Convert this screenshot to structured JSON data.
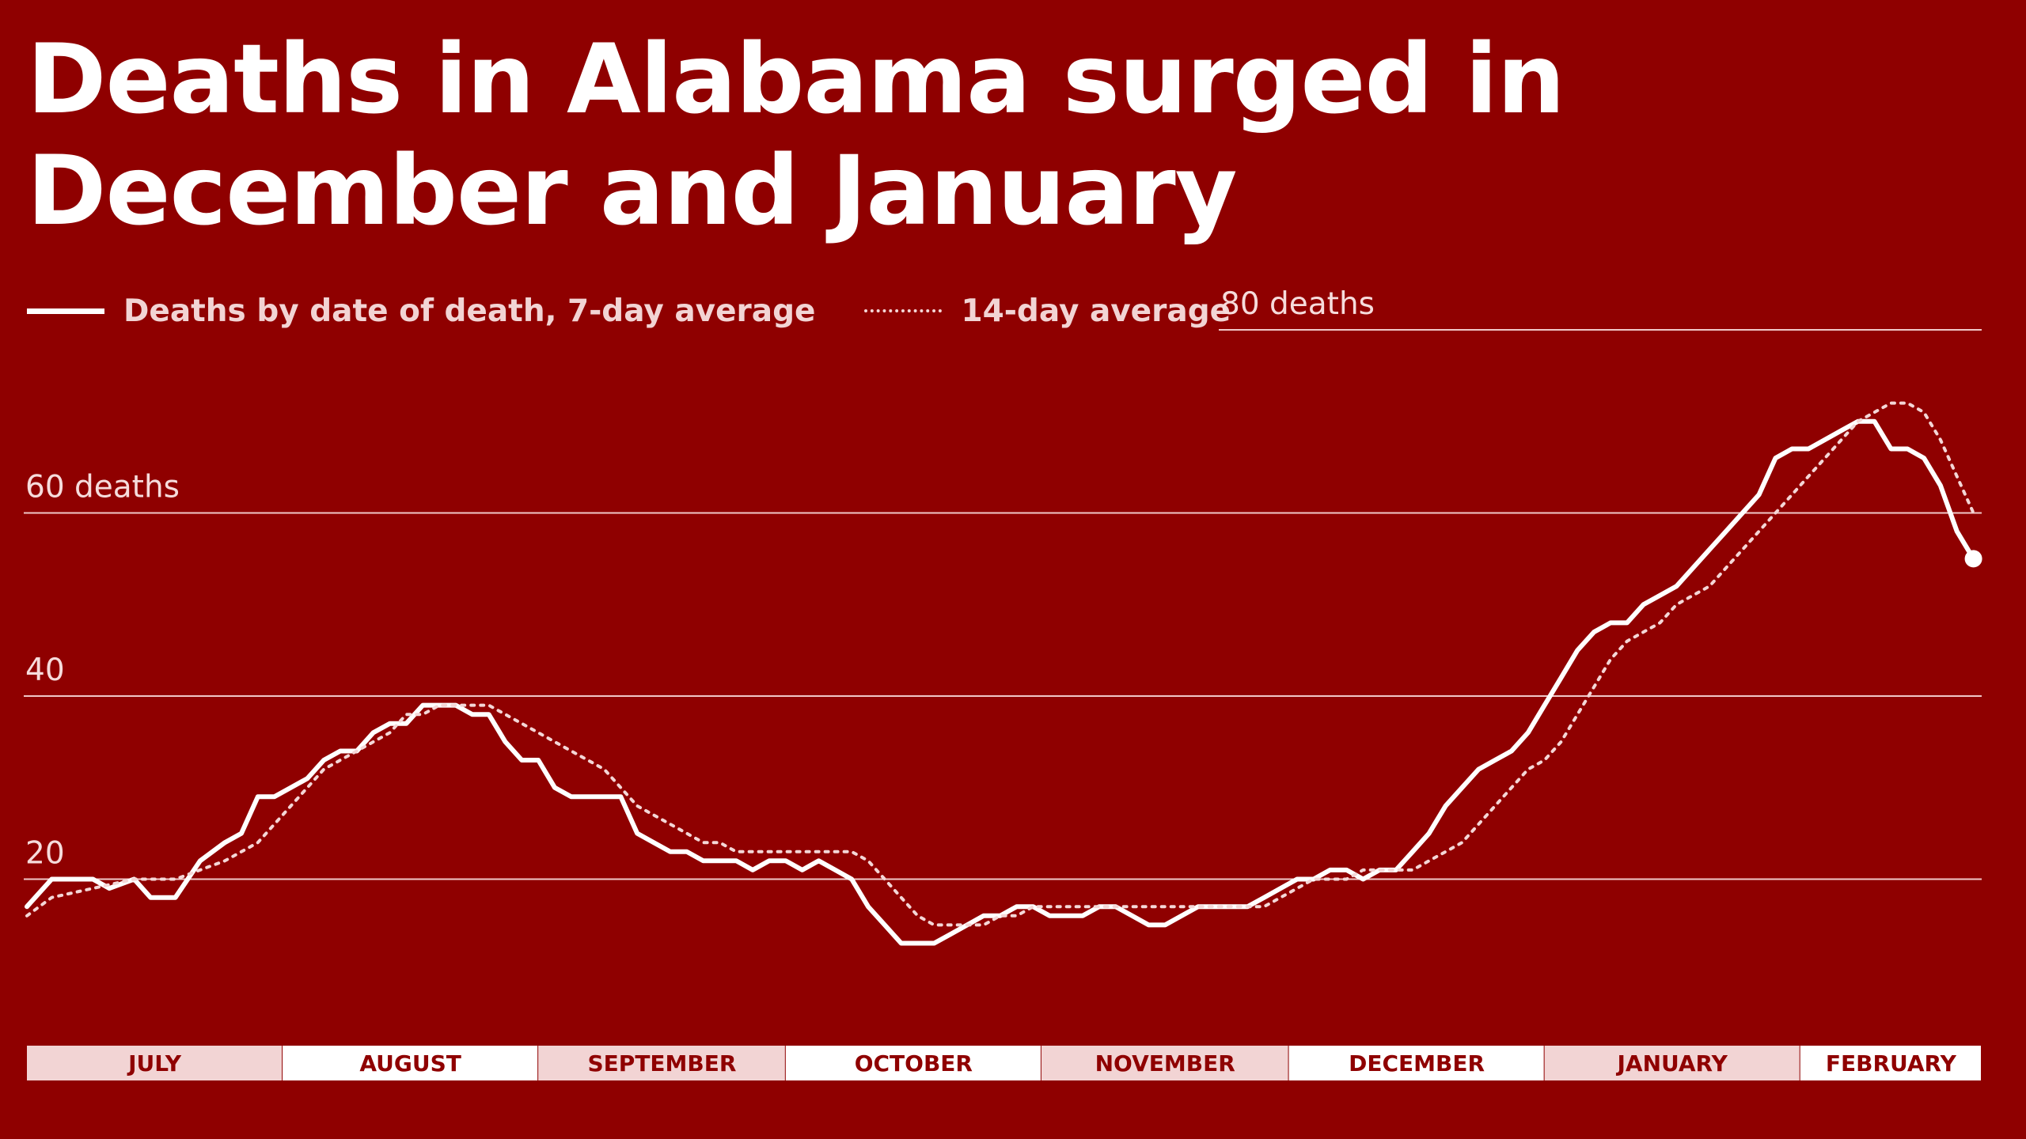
{
  "title_line_1": "Deaths in Alabama surged in",
  "title_line_2": "December and January",
  "legend": {
    "series_7day": "Deaths by date of death, 7-day average",
    "series_14day": "14-day average"
  },
  "colors": {
    "background": "#8f0000",
    "line": "#ffffff",
    "month_band_a": "#f2d4d4",
    "month_band_b": "#ffffff"
  },
  "chart_data": {
    "type": "line",
    "title": "Deaths in Alabama surged in December and January",
    "ylabel": "",
    "ylim": [
      0,
      80
    ],
    "y_ticks": [
      {
        "value": 20,
        "label": "20"
      },
      {
        "value": 40,
        "label": "40"
      },
      {
        "value": 60,
        "label": "60 deaths"
      },
      {
        "value": 80,
        "label": "80 deaths"
      }
    ],
    "x_start": "July 1",
    "x_end": "February 23",
    "grid": true,
    "months": [
      "JULY",
      "AUGUST",
      "SEPTEMBER",
      "OCTOBER",
      "NOVEMBER",
      "DECEMBER",
      "JANUARY",
      "FEBRUARY"
    ],
    "month_days": [
      31,
      31,
      30,
      31,
      30,
      31,
      31,
      23
    ],
    "series": [
      {
        "name": "Deaths by date of death, 7-day average",
        "style": "solid",
        "end_marker": true,
        "x": [
          0,
          3,
          8,
          10,
          13,
          15,
          18,
          21,
          24,
          26,
          28,
          30,
          32,
          34,
          36,
          38,
          40,
          42,
          44,
          46,
          48,
          50,
          52,
          54,
          56,
          58,
          60,
          62,
          64,
          66,
          68,
          70,
          72,
          74,
          76,
          78,
          80,
          82,
          84,
          86,
          88,
          90,
          92,
          94,
          96,
          98,
          100,
          102,
          104,
          106,
          108,
          110,
          112,
          114,
          116,
          118,
          120,
          122,
          124,
          126,
          128,
          130,
          132,
          134,
          136,
          138,
          140,
          142,
          144,
          146,
          148,
          150,
          152,
          154,
          156,
          158,
          160,
          162,
          164,
          166,
          168,
          170,
          172,
          174,
          176,
          178,
          180,
          182,
          184,
          186,
          188,
          190,
          192,
          194,
          196,
          198,
          200,
          202,
          204,
          206,
          208,
          210,
          212,
          214,
          216,
          218,
          220,
          222,
          224,
          226,
          228,
          230,
          232,
          234,
          236
        ],
        "y": [
          17,
          20,
          20,
          19,
          20,
          18,
          18,
          22,
          24,
          25,
          29,
          29,
          30,
          31,
          33,
          34,
          34,
          36,
          37,
          37,
          39,
          39,
          39,
          38,
          38,
          35,
          33,
          33,
          30,
          29,
          29,
          29,
          29,
          25,
          24,
          23,
          23,
          22,
          22,
          22,
          21,
          22,
          22,
          21,
          22,
          21,
          20,
          17,
          15,
          13,
          13,
          13,
          14,
          15,
          16,
          16,
          17,
          17,
          16,
          16,
          16,
          17,
          17,
          16,
          15,
          15,
          16,
          17,
          17,
          17,
          17,
          18,
          19,
          20,
          20,
          21,
          21,
          20,
          21,
          21,
          23,
          25,
          28,
          30,
          32,
          33,
          34,
          36,
          39,
          42,
          45,
          47,
          48,
          48,
          50,
          51,
          52,
          54,
          56,
          58,
          60,
          62,
          66,
          67,
          67,
          68,
          69,
          70,
          70,
          67,
          67,
          66,
          63,
          58,
          55
        ]
      },
      {
        "name": "14-day average",
        "style": "dotted",
        "end_marker": false,
        "x": [
          0,
          3,
          8,
          13,
          18,
          21,
          24,
          26,
          28,
          30,
          32,
          34,
          36,
          38,
          40,
          42,
          44,
          46,
          48,
          50,
          52,
          54,
          56,
          58,
          60,
          62,
          64,
          66,
          68,
          70,
          72,
          74,
          76,
          78,
          80,
          82,
          84,
          86,
          88,
          90,
          92,
          94,
          96,
          98,
          100,
          102,
          104,
          106,
          108,
          110,
          112,
          114,
          116,
          118,
          120,
          122,
          124,
          126,
          128,
          130,
          132,
          134,
          136,
          138,
          140,
          142,
          144,
          146,
          148,
          150,
          152,
          154,
          156,
          158,
          160,
          162,
          164,
          166,
          168,
          170,
          172,
          174,
          176,
          178,
          180,
          182,
          184,
          186,
          188,
          190,
          192,
          194,
          196,
          198,
          200,
          202,
          204,
          206,
          208,
          210,
          212,
          214,
          216,
          218,
          220,
          222,
          224,
          226,
          228,
          230,
          232,
          234,
          236
        ],
        "y": [
          16,
          18,
          19,
          20,
          20,
          21,
          22,
          23,
          24,
          26,
          28,
          30,
          32,
          33,
          34,
          35,
          36,
          38,
          38,
          39,
          39,
          39,
          39,
          38,
          37,
          36,
          35,
          34,
          33,
          32,
          30,
          28,
          27,
          26,
          25,
          24,
          24,
          23,
          23,
          23,
          23,
          23,
          23,
          23,
          23,
          22,
          20,
          18,
          16,
          15,
          15,
          15,
          15,
          16,
          16,
          17,
          17,
          17,
          17,
          17,
          17,
          17,
          17,
          17,
          17,
          17,
          17,
          17,
          17,
          17,
          18,
          19,
          20,
          20,
          20,
          21,
          21,
          21,
          21,
          22,
          23,
          24,
          26,
          28,
          30,
          32,
          33,
          35,
          38,
          41,
          44,
          46,
          47,
          48,
          50,
          51,
          52,
          54,
          56,
          58,
          60,
          62,
          64,
          66,
          68,
          70,
          71,
          72,
          72,
          71,
          68,
          64,
          60
        ]
      }
    ]
  }
}
